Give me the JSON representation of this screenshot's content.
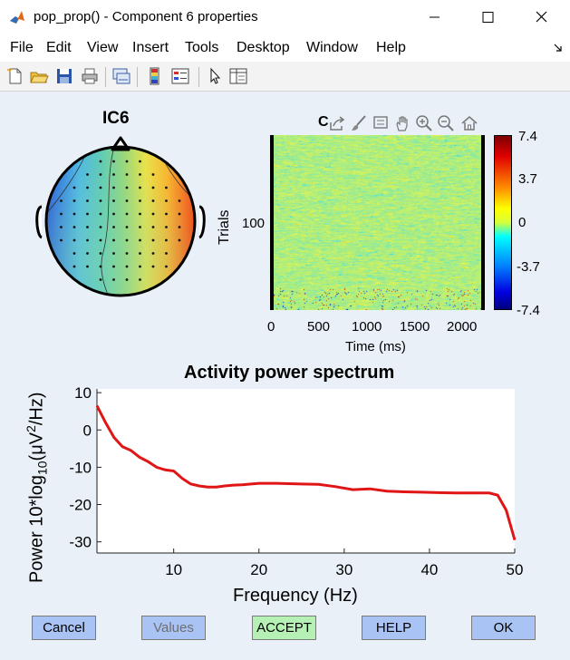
{
  "window": {
    "title": "pop_prop() - Component 6 properties",
    "controls": [
      "minimize",
      "maximize",
      "close"
    ]
  },
  "menu": [
    "File",
    "Edit",
    "View",
    "Insert",
    "Tools",
    "Desktop",
    "Window",
    "Help"
  ],
  "toolbar": [
    "new-figure",
    "open-file",
    "save",
    "print",
    "link-plot",
    "insert-colorbar",
    "insert-legend",
    "edit-plot",
    "property-inspector"
  ],
  "axes_toolbar": [
    "export",
    "brush",
    "data-tips",
    "pan",
    "zoom-in",
    "zoom-out",
    "restore-view"
  ],
  "topo": {
    "title": "IC6",
    "colors": {
      "positive": "#e8281c",
      "mid": "#f5e632",
      "zero": "#5ec8a0",
      "negative": "#1e2aa8"
    }
  },
  "erp_image": {
    "title_partial": "C",
    "ylabel": "Trials",
    "ytick": "100",
    "xlabel": "Time (ms)",
    "xticks": [
      "0",
      "500",
      "1000",
      "1500",
      "2000"
    ],
    "colorbar_ticks": [
      "7.4",
      "3.7",
      "0",
      "-3.7",
      "-7.4"
    ]
  },
  "spectrum": {
    "title": "Activity power spectrum",
    "ylabel_prefix": "Power 10*log",
    "ylabel_sub": "10",
    "ylabel_mid": "(μV",
    "ylabel_sup": "2",
    "ylabel_suffix": "/Hz)",
    "xlabel": "Frequency (Hz)",
    "line_color": "#e01515"
  },
  "chart_data": {
    "type": "line",
    "title": "Activity power spectrum",
    "xlabel": "Frequency (Hz)",
    "ylabel": "Power 10*log10(μV^2/Hz)",
    "xlim": [
      1,
      50
    ],
    "ylim": [
      -33,
      11
    ],
    "xticks": [
      10,
      20,
      30,
      40,
      50
    ],
    "yticks": [
      10,
      0,
      -10,
      -20,
      -30
    ],
    "x": [
      1,
      2,
      3,
      4,
      5,
      6,
      7,
      8,
      9,
      10,
      11,
      12,
      13,
      14,
      15,
      16,
      17,
      18,
      20,
      22,
      25,
      27,
      29,
      31,
      33,
      35,
      37,
      39,
      41,
      43,
      45,
      47,
      48,
      49,
      50
    ],
    "y": [
      6.5,
      2,
      -2,
      -4.5,
      -5.5,
      -7.3,
      -8.5,
      -10,
      -10.7,
      -11,
      -13,
      -14.5,
      -15,
      -15.3,
      -15.3,
      -15,
      -14.8,
      -14.7,
      -14.3,
      -14.3,
      -14.5,
      -14.6,
      -15.2,
      -16,
      -15.8,
      -16.4,
      -16.6,
      -16.7,
      -16.8,
      -16.9,
      -16.9,
      -16.9,
      -17.5,
      -21.5,
      -29.5
    ]
  },
  "buttons": {
    "cancel": "Cancel",
    "values": "Values",
    "accept": "ACCEPT",
    "help": "HELP",
    "ok": "OK"
  }
}
